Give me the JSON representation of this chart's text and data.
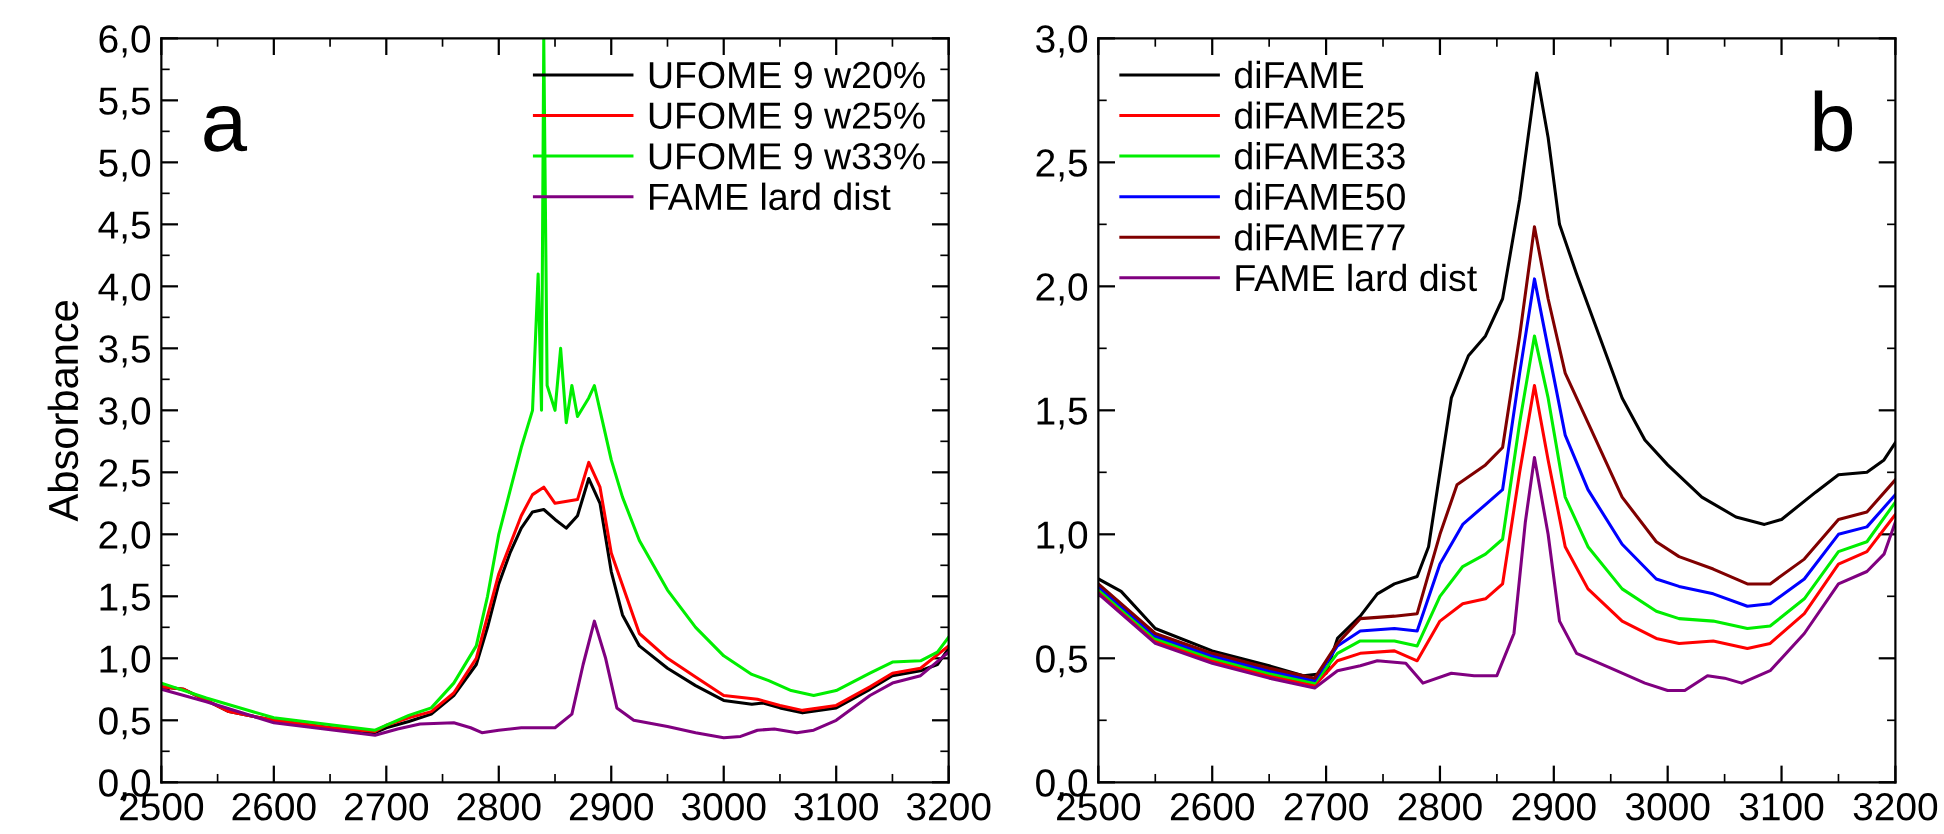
{
  "chart_data": [
    {
      "type": "line",
      "ylabel": "Absorbance",
      "annotations": [
        "a"
      ],
      "legend": "top right",
      "grid": false,
      "line_style": "solid",
      "marker": "none",
      "xlim": [
        2500,
        3200
      ],
      "xticks": [
        2500,
        2600,
        2700,
        2800,
        2900,
        3000,
        3100,
        3200
      ],
      "ylim": [
        0,
        6
      ],
      "yticks": [
        {
          "value": 0,
          "label": "0,0"
        },
        {
          "value": 0.5,
          "label": "0,5"
        },
        {
          "value": 1,
          "label": "1,0"
        },
        {
          "value": 1.5,
          "label": "1,5"
        },
        {
          "value": 2,
          "label": "2,0"
        },
        {
          "value": 2.5,
          "label": "2,5"
        },
        {
          "value": 3,
          "label": "3,0"
        },
        {
          "value": 3.5,
          "label": "3,5"
        },
        {
          "value": 4,
          "label": "4,0"
        },
        {
          "value": 4.5,
          "label": "4,5"
        },
        {
          "value": 5,
          "label": "5,0"
        },
        {
          "value": 5.5,
          "label": "5,5"
        },
        {
          "value": 6,
          "label": "6,0"
        }
      ],
      "series": [
        {
          "name": "UFOME 9 w20%",
          "color": "#000000",
          "x": [
            2500,
            2520,
            2540,
            2560,
            2600,
            2650,
            2690,
            2700,
            2720,
            2740,
            2760,
            2780,
            2790,
            2800,
            2810,
            2820,
            2830,
            2840,
            2850,
            2860,
            2870,
            2880,
            2890,
            2900,
            2910,
            2925,
            2950,
            2975,
            3000,
            3025,
            3035,
            3050,
            3070,
            3100,
            3130,
            3150,
            3175,
            3190,
            3200
          ],
          "values": [
            0.77,
            0.75,
            0.66,
            0.57,
            0.5,
            0.44,
            0.4,
            0.44,
            0.49,
            0.55,
            0.7,
            0.95,
            1.25,
            1.6,
            1.85,
            2.05,
            2.18,
            2.2,
            2.12,
            2.05,
            2.15,
            2.45,
            2.25,
            1.7,
            1.35,
            1.1,
            0.92,
            0.78,
            0.66,
            0.63,
            0.64,
            0.6,
            0.56,
            0.6,
            0.75,
            0.86,
            0.9,
            0.95,
            1.08
          ]
        },
        {
          "name": "UFOME 9 w25%",
          "color": "#ff0000",
          "x": [
            2500,
            2520,
            2540,
            2560,
            2600,
            2650,
            2690,
            2700,
            2720,
            2740,
            2760,
            2780,
            2800,
            2820,
            2830,
            2840,
            2850,
            2870,
            2880,
            2890,
            2900,
            2925,
            2950,
            2975,
            3000,
            3030,
            3050,
            3070,
            3100,
            3130,
            3150,
            3175,
            3200
          ],
          "values": [
            0.77,
            0.75,
            0.66,
            0.57,
            0.5,
            0.44,
            0.41,
            0.46,
            0.52,
            0.57,
            0.72,
            1.0,
            1.68,
            2.15,
            2.32,
            2.38,
            2.25,
            2.28,
            2.58,
            2.38,
            1.85,
            1.2,
            1.0,
            0.85,
            0.7,
            0.67,
            0.62,
            0.58,
            0.62,
            0.77,
            0.88,
            0.92,
            1.1
          ]
        },
        {
          "name": "UFOME 9 w33%",
          "color": "#00ee00",
          "x": [
            2500,
            2540,
            2600,
            2690,
            2720,
            2740,
            2760,
            2780,
            2790,
            2800,
            2810,
            2820,
            2825,
            2830,
            2835,
            2838,
            2840,
            2843,
            2850,
            2855,
            2860,
            2865,
            2870,
            2880,
            2885,
            2890,
            2900,
            2910,
            2925,
            2950,
            2975,
            3000,
            3025,
            3040,
            3060,
            3080,
            3100,
            3130,
            3150,
            3175,
            3190,
            3200
          ],
          "values": [
            0.8,
            0.68,
            0.52,
            0.42,
            0.54,
            0.6,
            0.8,
            1.1,
            1.5,
            2.0,
            2.35,
            2.7,
            2.85,
            3.0,
            4.1,
            3.0,
            6.0,
            3.2,
            3.0,
            3.5,
            2.9,
            3.2,
            2.95,
            3.1,
            3.2,
            3.0,
            2.6,
            2.3,
            1.95,
            1.55,
            1.25,
            1.02,
            0.87,
            0.82,
            0.74,
            0.7,
            0.74,
            0.88,
            0.97,
            0.98,
            1.05,
            1.17
          ]
        },
        {
          "name": "FAME lard dist",
          "color": "#800080",
          "x": [
            2500,
            2540,
            2600,
            2690,
            2710,
            2730,
            2760,
            2775,
            2785,
            2800,
            2820,
            2850,
            2865,
            2875,
            2885,
            2895,
            2905,
            2920,
            2950,
            2975,
            3000,
            3015,
            3030,
            3045,
            3065,
            3080,
            3100,
            3130,
            3150,
            3175,
            3200
          ],
          "values": [
            0.75,
            0.65,
            0.48,
            0.38,
            0.43,
            0.47,
            0.48,
            0.44,
            0.4,
            0.42,
            0.44,
            0.44,
            0.55,
            0.95,
            1.3,
            1.0,
            0.6,
            0.5,
            0.45,
            0.4,
            0.36,
            0.37,
            0.42,
            0.43,
            0.4,
            0.42,
            0.5,
            0.7,
            0.8,
            0.86,
            1.05
          ]
        }
      ]
    },
    {
      "type": "line",
      "annotations": [
        "b"
      ],
      "legend": "top left",
      "grid": false,
      "line_style": "solid",
      "marker": "none",
      "xlim": [
        2500,
        3200
      ],
      "xticks": [
        2500,
        2600,
        2700,
        2800,
        2900,
        3000,
        3100,
        3200
      ],
      "ylim": [
        0,
        3
      ],
      "yticks": [
        {
          "value": 0,
          "label": "0,0"
        },
        {
          "value": 0.5,
          "label": "0,5"
        },
        {
          "value": 1,
          "label": "1,0"
        },
        {
          "value": 1.5,
          "label": "1,5"
        },
        {
          "value": 2,
          "label": "2,0"
        },
        {
          "value": 2.5,
          "label": "2,5"
        },
        {
          "value": 3,
          "label": "3,0"
        }
      ],
      "series": [
        {
          "name": "diFAME",
          "color": "#000000",
          "x": [
            2500,
            2520,
            2550,
            2600,
            2650,
            2680,
            2700,
            2710,
            2730,
            2745,
            2760,
            2780,
            2790,
            2800,
            2810,
            2825,
            2840,
            2855,
            2870,
            2885,
            2895,
            2905,
            2920,
            2940,
            2960,
            2980,
            3000,
            3030,
            3060,
            3085,
            3100,
            3130,
            3150,
            3175,
            3190,
            3200
          ],
          "values": [
            0.82,
            0.77,
            0.62,
            0.53,
            0.47,
            0.43,
            0.44,
            0.58,
            0.67,
            0.76,
            0.8,
            0.83,
            0.95,
            1.25,
            1.55,
            1.72,
            1.8,
            1.95,
            2.35,
            2.86,
            2.6,
            2.25,
            2.05,
            1.8,
            1.55,
            1.38,
            1.28,
            1.15,
            1.07,
            1.04,
            1.06,
            1.17,
            1.24,
            1.25,
            1.3,
            1.37
          ]
        },
        {
          "name": "diFAME25",
          "color": "#ff0000",
          "x": [
            2500,
            2550,
            2600,
            2650,
            2690,
            2710,
            2730,
            2760,
            2780,
            2800,
            2820,
            2840,
            2855,
            2870,
            2883,
            2895,
            2910,
            2930,
            2960,
            2990,
            3010,
            3040,
            3070,
            3090,
            3120,
            3150,
            3175,
            3200
          ],
          "values": [
            0.77,
            0.57,
            0.49,
            0.43,
            0.39,
            0.49,
            0.52,
            0.53,
            0.49,
            0.65,
            0.72,
            0.74,
            0.8,
            1.25,
            1.6,
            1.3,
            0.95,
            0.78,
            0.65,
            0.58,
            0.56,
            0.57,
            0.54,
            0.56,
            0.68,
            0.88,
            0.93,
            1.08
          ]
        },
        {
          "name": "diFAME33",
          "color": "#00ee00",
          "x": [
            2500,
            2550,
            2600,
            2650,
            2690,
            2710,
            2730,
            2760,
            2780,
            2800,
            2820,
            2840,
            2855,
            2870,
            2883,
            2895,
            2910,
            2930,
            2960,
            2990,
            3010,
            3040,
            3070,
            3090,
            3120,
            3150,
            3175,
            3200
          ],
          "values": [
            0.78,
            0.58,
            0.5,
            0.44,
            0.4,
            0.52,
            0.57,
            0.57,
            0.55,
            0.75,
            0.87,
            0.92,
            0.98,
            1.45,
            1.8,
            1.55,
            1.15,
            0.95,
            0.78,
            0.69,
            0.66,
            0.65,
            0.62,
            0.63,
            0.74,
            0.93,
            0.97,
            1.13
          ]
        },
        {
          "name": "diFAME50",
          "color": "#0000ff",
          "x": [
            2500,
            2550,
            2600,
            2650,
            2690,
            2710,
            2730,
            2760,
            2780,
            2800,
            2820,
            2840,
            2855,
            2870,
            2883,
            2895,
            2910,
            2930,
            2960,
            2990,
            3010,
            3040,
            3070,
            3090,
            3120,
            3150,
            3175,
            3200
          ],
          "values": [
            0.79,
            0.59,
            0.51,
            0.45,
            0.41,
            0.55,
            0.61,
            0.62,
            0.61,
            0.88,
            1.04,
            1.12,
            1.18,
            1.65,
            2.03,
            1.75,
            1.4,
            1.18,
            0.96,
            0.82,
            0.79,
            0.76,
            0.71,
            0.72,
            0.82,
            1.0,
            1.03,
            1.16
          ]
        },
        {
          "name": "diFAME77",
          "color": "#800000",
          "x": [
            2500,
            2550,
            2600,
            2650,
            2690,
            2710,
            2730,
            2760,
            2780,
            2800,
            2815,
            2840,
            2855,
            2870,
            2883,
            2895,
            2910,
            2930,
            2960,
            2990,
            3010,
            3040,
            3070,
            3090,
            3120,
            3150,
            3175,
            3200
          ],
          "values": [
            0.8,
            0.6,
            0.52,
            0.46,
            0.42,
            0.56,
            0.66,
            0.67,
            0.68,
            1.0,
            1.2,
            1.28,
            1.35,
            1.8,
            2.24,
            1.95,
            1.65,
            1.45,
            1.15,
            0.97,
            0.91,
            0.86,
            0.8,
            0.8,
            0.9,
            1.06,
            1.09,
            1.22
          ]
        },
        {
          "name": "FAME lard dist",
          "color": "#800080",
          "x": [
            2500,
            2550,
            2600,
            2650,
            2690,
            2710,
            2730,
            2745,
            2770,
            2785,
            2810,
            2830,
            2850,
            2865,
            2875,
            2883,
            2895,
            2905,
            2920,
            2950,
            2980,
            3000,
            3015,
            3035,
            3050,
            3065,
            3090,
            3120,
            3150,
            3175,
            3190,
            3200
          ],
          "values": [
            0.76,
            0.56,
            0.48,
            0.42,
            0.38,
            0.45,
            0.47,
            0.49,
            0.48,
            0.4,
            0.44,
            0.43,
            0.43,
            0.6,
            1.05,
            1.31,
            1.0,
            0.65,
            0.52,
            0.46,
            0.4,
            0.37,
            0.37,
            0.43,
            0.42,
            0.4,
            0.45,
            0.6,
            0.8,
            0.85,
            0.92,
            1.05
          ]
        }
      ]
    }
  ]
}
